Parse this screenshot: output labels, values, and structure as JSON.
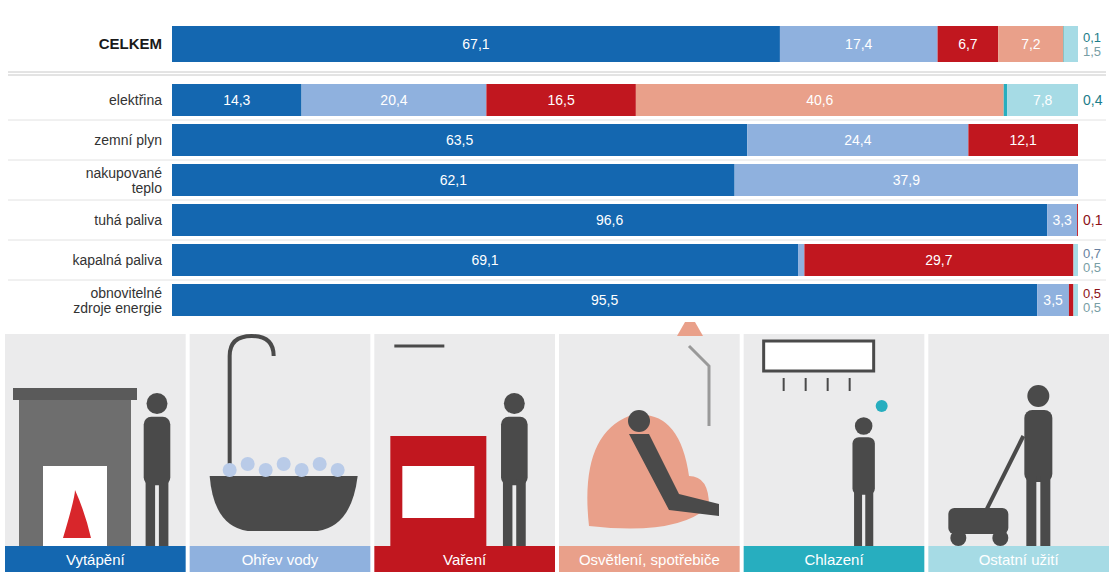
{
  "chart_data": {
    "type": "bar",
    "orientation": "horizontal",
    "stacked": true,
    "data_labels": true,
    "tick_labels": "y",
    "legend": "bottom",
    "xlim": [
      0,
      100
    ],
    "categories": [
      "CELKEM",
      "elektřina",
      "zemní plyn",
      "nakupované teplo",
      "tuhá paliva",
      "kapalná paliva",
      "obnovitelné zdroje energie"
    ],
    "series": [
      {
        "name": "Vytápění",
        "color": "#1467b0",
        "values": [
          67.1,
          14.3,
          63.5,
          62.1,
          96.6,
          69.1,
          95.5
        ],
        "value_labels": [
          "67,1",
          "14,3",
          "63,5",
          "62,1",
          "96,6",
          "69,1",
          "95,5"
        ]
      },
      {
        "name": "Ohřev vody",
        "color": "#8fb1de",
        "values": [
          17.4,
          20.4,
          24.4,
          37.9,
          3.3,
          0.7,
          3.5
        ],
        "value_labels": [
          "17,4",
          "20,4",
          "24,4",
          "37,9",
          "3,3",
          "0,7",
          "3,5"
        ]
      },
      {
        "name": "Vaření",
        "color": "#c1171f",
        "values": [
          6.7,
          16.5,
          12.1,
          null,
          0.1,
          29.7,
          0.5
        ],
        "value_labels": [
          "6,7",
          "16,5",
          "12,1",
          null,
          "0,1",
          "29,7",
          "0,5"
        ]
      },
      {
        "name": "Osvětlení, spotřebiče",
        "color": "#e9a08a",
        "values": [
          7.2,
          40.6,
          null,
          null,
          null,
          null,
          null
        ],
        "value_labels": [
          "7,2",
          "40,6",
          null,
          null,
          null,
          null,
          null
        ]
      },
      {
        "name": "Chlazení",
        "color": "#27aebf",
        "values": [
          0.1,
          0.4,
          null,
          null,
          null,
          null,
          null
        ],
        "value_labels": [
          "0,1",
          "0,4",
          null,
          null,
          null,
          null,
          null
        ]
      },
      {
        "name": "Ostatní užití",
        "color": "#a6dbe5",
        "values": [
          1.5,
          7.8,
          null,
          null,
          null,
          0.5,
          0.5
        ],
        "value_labels": [
          "1,5",
          "7,8",
          null,
          null,
          null,
          "0,5",
          "0,5"
        ]
      }
    ]
  }
}
